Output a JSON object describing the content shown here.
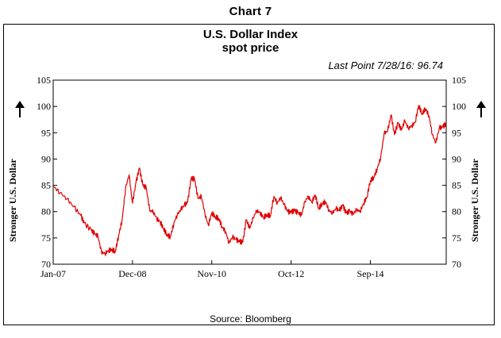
{
  "header": "Chart 7",
  "title_line1": "U.S. Dollar Index",
  "title_line2": "spot  price",
  "last_point": "Last  Point  7/28/16:  96.74",
  "side_label": "Stronger U.S. Dollar",
  "source": "Source: Bloomberg",
  "colors": {
    "line": "#e00000",
    "frame": "#000000"
  },
  "icons": {
    "left_arrow": "up-arrow-icon",
    "right_arrow": "up-arrow-icon"
  },
  "chart_data": {
    "type": "line",
    "title": "U.S. Dollar Index",
    "subtitle": "spot  price",
    "ylim": [
      70,
      105
    ],
    "y_ticks": [
      "105",
      "100",
      "95",
      "90",
      "85",
      "80",
      "75",
      "70"
    ],
    "x_ticks": [
      "Jan-07",
      "Dec-08",
      "Nov-10",
      "Oct-12",
      "Sep-14"
    ],
    "xlim": [
      "2007-01",
      "2016-07"
    ],
    "grid": false,
    "series": [
      {
        "points": [
          [
            "2007-01",
            84.8
          ],
          [
            "2007-03",
            83.6
          ],
          [
            "2007-05",
            82.4
          ],
          [
            "2007-07",
            80.9
          ],
          [
            "2007-09",
            79.3
          ],
          [
            "2007-10",
            77.8
          ],
          [
            "2007-12",
            76.5
          ],
          [
            "2008-01",
            75.8
          ],
          [
            "2008-02",
            75.3
          ],
          [
            "2008-03",
            72.3
          ],
          [
            "2008-04",
            72.0
          ],
          [
            "2008-05",
            72.6
          ],
          [
            "2008-06",
            72.8
          ],
          [
            "2008-07",
            72.4
          ],
          [
            "2008-08",
            75.5
          ],
          [
            "2008-09",
            78.4
          ],
          [
            "2008-10",
            84.5
          ],
          [
            "2008-11",
            87.0
          ],
          [
            "2008-12",
            81.6
          ],
          [
            "2009-01",
            85.5
          ],
          [
            "2009-02",
            88.3
          ],
          [
            "2009-03",
            85.0
          ],
          [
            "2009-04",
            84.5
          ],
          [
            "2009-05",
            80.2
          ],
          [
            "2009-06",
            80.0
          ],
          [
            "2009-07",
            78.7
          ],
          [
            "2009-08",
            78.1
          ],
          [
            "2009-09",
            76.8
          ],
          [
            "2009-10",
            75.6
          ],
          [
            "2009-11",
            75.2
          ],
          [
            "2009-12",
            77.8
          ],
          [
            "2010-01",
            79.4
          ],
          [
            "2010-02",
            80.4
          ],
          [
            "2010-03",
            81.2
          ],
          [
            "2010-04",
            81.8
          ],
          [
            "2010-05",
            86.3
          ],
          [
            "2010-06",
            86.2
          ],
          [
            "2010-07",
            82.5
          ],
          [
            "2010-08",
            82.9
          ],
          [
            "2010-09",
            79.6
          ],
          [
            "2010-10",
            77.4
          ],
          [
            "2010-11",
            79.8
          ],
          [
            "2010-12",
            79.0
          ],
          [
            "2011-01",
            78.7
          ],
          [
            "2011-02",
            77.1
          ],
          [
            "2011-03",
            76.2
          ],
          [
            "2011-04",
            74.0
          ],
          [
            "2011-05",
            75.2
          ],
          [
            "2011-06",
            74.7
          ],
          [
            "2011-07",
            74.3
          ],
          [
            "2011-08",
            74.2
          ],
          [
            "2011-09",
            78.5
          ],
          [
            "2011-10",
            76.8
          ],
          [
            "2011-11",
            78.8
          ],
          [
            "2011-12",
            80.2
          ],
          [
            "2012-01",
            79.8
          ],
          [
            "2012-02",
            78.9
          ],
          [
            "2012-03",
            79.4
          ],
          [
            "2012-04",
            79.2
          ],
          [
            "2012-05",
            82.9
          ],
          [
            "2012-06",
            81.6
          ],
          [
            "2012-07",
            82.7
          ],
          [
            "2012-08",
            81.3
          ],
          [
            "2012-09",
            80.0
          ],
          [
            "2012-10",
            79.9
          ],
          [
            "2012-11",
            80.2
          ],
          [
            "2012-12",
            79.8
          ],
          [
            "2013-01",
            79.3
          ],
          [
            "2013-02",
            81.9
          ],
          [
            "2013-03",
            82.9
          ],
          [
            "2013-04",
            81.8
          ],
          [
            "2013-05",
            83.2
          ],
          [
            "2013-06",
            80.6
          ],
          [
            "2013-07",
            81.5
          ],
          [
            "2013-08",
            81.9
          ],
          [
            "2013-09",
            80.2
          ],
          [
            "2013-10",
            79.7
          ],
          [
            "2013-11",
            80.6
          ],
          [
            "2013-12",
            80.2
          ],
          [
            "2014-01",
            81.2
          ],
          [
            "2014-02",
            79.7
          ],
          [
            "2014-03",
            80.1
          ],
          [
            "2014-04",
            79.5
          ],
          [
            "2014-05",
            80.4
          ],
          [
            "2014-06",
            80.0
          ],
          [
            "2014-07",
            81.5
          ],
          [
            "2014-08",
            82.8
          ],
          [
            "2014-09",
            85.9
          ],
          [
            "2014-10",
            86.5
          ],
          [
            "2014-11",
            88.2
          ],
          [
            "2014-12",
            90.3
          ],
          [
            "2015-01",
            94.9
          ],
          [
            "2015-02",
            95.3
          ],
          [
            "2015-03",
            98.4
          ],
          [
            "2015-04",
            94.6
          ],
          [
            "2015-05",
            96.9
          ],
          [
            "2015-06",
            95.5
          ],
          [
            "2015-07",
            97.3
          ],
          [
            "2015-08",
            95.8
          ],
          [
            "2015-09",
            96.3
          ],
          [
            "2015-10",
            97.0
          ],
          [
            "2015-11",
            100.2
          ],
          [
            "2015-12",
            98.6
          ],
          [
            "2016-01",
            99.6
          ],
          [
            "2016-02",
            98.2
          ],
          [
            "2016-03",
            94.6
          ],
          [
            "2016-04",
            93.1
          ],
          [
            "2016-05",
            95.9
          ],
          [
            "2016-06",
            96.1
          ],
          [
            "2016-07",
            96.74
          ]
        ]
      }
    ]
  }
}
